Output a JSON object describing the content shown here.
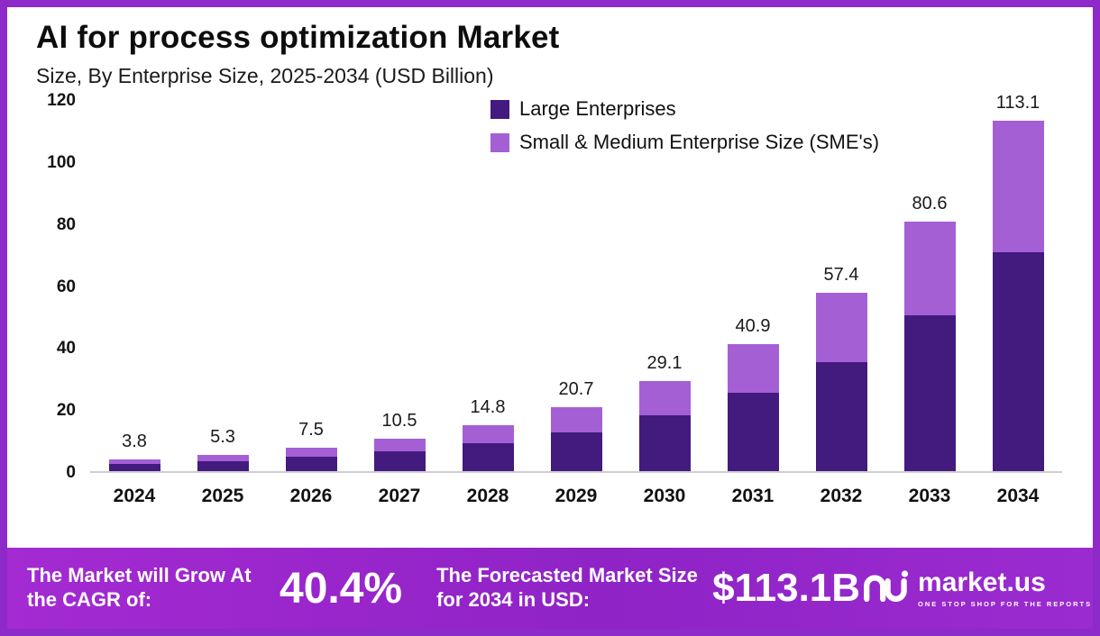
{
  "header": {
    "title": "AI for process optimization Market",
    "subtitle": "Size, By Enterprise Size, 2025-2034 (USD Billion)"
  },
  "chart_data": {
    "type": "bar",
    "stacked": true,
    "title": "AI for process optimization Market Size, By Enterprise Size, 2025-2034 (USD Billion)",
    "categories": [
      "2024",
      "2025",
      "2026",
      "2027",
      "2028",
      "2029",
      "2030",
      "2031",
      "2032",
      "2033",
      "2034"
    ],
    "series": [
      {
        "name": "Large Enterprises",
        "color": "#431a7d",
        "values": [
          2.4,
          3.3,
          4.6,
          6.4,
          9.0,
          12.6,
          18.0,
          25.3,
          35.1,
          50.4,
          70.5
        ]
      },
      {
        "name": "Small & Medium Enterprise Size (SME's)",
        "color": "#a55fd5",
        "values": [
          1.4,
          2.0,
          2.9,
          4.1,
          5.8,
          8.1,
          11.1,
          15.6,
          22.3,
          30.2,
          42.6
        ]
      }
    ],
    "totals": [
      3.8,
      5.3,
      7.5,
      10.5,
      14.8,
      20.7,
      29.1,
      40.9,
      57.4,
      80.6,
      113.1
    ],
    "xlabel": "",
    "ylabel": "",
    "ylim": [
      0,
      120
    ],
    "ytick_step": 20,
    "grid": false,
    "legend_position": "top-center"
  },
  "footer": {
    "cagr_label": "The Market will Grow At the CAGR of:",
    "cagr_value": "40.4%",
    "forecast_label": "The Forecasted Market Size for 2034 in USD:",
    "forecast_value": "$113.1B",
    "brand": "market.us",
    "brand_tagline": "ONE STOP SHOP FOR THE REPORTS"
  },
  "colors": {
    "frame_border": "#8d2ac9",
    "banner_purple": "#9629c9",
    "large_enterprises": "#431a7d",
    "sme": "#a55fd5",
    "baseline": "#cfcfcf"
  }
}
